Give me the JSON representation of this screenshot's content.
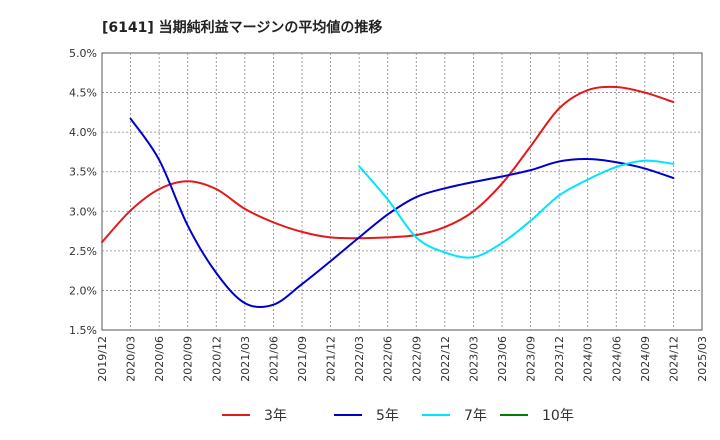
{
  "chart_data": {
    "type": "line",
    "title": "[6141]  当期純利益マージンの平均値の推移",
    "xlabel": "",
    "ylabel": "",
    "x": [
      "2019/12",
      "2020/03",
      "2020/06",
      "2020/09",
      "2020/12",
      "2021/03",
      "2021/06",
      "2021/09",
      "2021/12",
      "2022/03",
      "2022/06",
      "2022/09",
      "2022/12",
      "2023/03",
      "2023/06",
      "2023/09",
      "2023/12",
      "2024/03",
      "2024/06",
      "2024/09",
      "2024/12",
      "2025/03"
    ],
    "yticks": [
      "1.5%",
      "2.0%",
      "2.5%",
      "3.0%",
      "3.5%",
      "4.0%",
      "4.5%",
      "5.0%"
    ],
    "ylim": [
      1.5,
      5.0
    ],
    "grid": true,
    "legend_position": "bottom",
    "series": [
      {
        "name": "3年",
        "color": "#e31a1c",
        "values": [
          2.61,
          3.01,
          3.28,
          3.38,
          3.28,
          3.03,
          2.86,
          2.74,
          2.67,
          2.66,
          2.67,
          2.7,
          2.8,
          3.0,
          3.35,
          3.82,
          4.3,
          4.53,
          4.57,
          4.5,
          4.38,
          null
        ]
      },
      {
        "name": "5年",
        "color": "#0000cc",
        "values": [
          null,
          4.17,
          3.65,
          2.82,
          2.22,
          1.84,
          1.82,
          2.08,
          2.37,
          2.67,
          2.96,
          3.18,
          3.29,
          3.37,
          3.44,
          3.52,
          3.63,
          3.66,
          3.62,
          3.54,
          3.42,
          null
        ]
      },
      {
        "name": "7年",
        "color": "#00e5ff",
        "values": [
          null,
          null,
          null,
          null,
          null,
          null,
          null,
          null,
          null,
          3.57,
          3.15,
          2.67,
          2.48,
          2.42,
          2.6,
          2.88,
          3.2,
          3.4,
          3.56,
          3.64,
          3.6,
          null
        ]
      },
      {
        "name": "10年",
        "color": "#008000",
        "values": [
          null,
          null,
          null,
          null,
          null,
          null,
          null,
          null,
          null,
          null,
          null,
          null,
          null,
          null,
          null,
          null,
          null,
          null,
          null,
          null,
          null,
          null
        ]
      }
    ]
  }
}
